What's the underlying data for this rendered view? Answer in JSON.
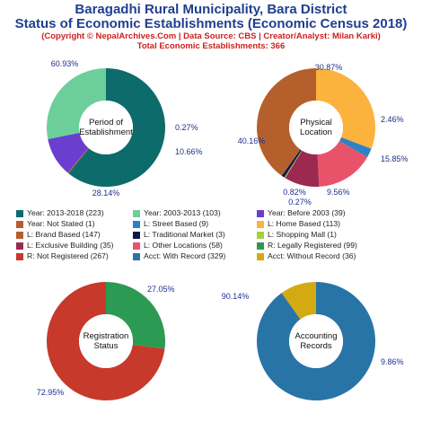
{
  "header": {
    "title": "Baragadhi Rural Municipality, Bara District",
    "subtitle": "Status of Economic Establishments (Economic Census 2018)",
    "copyright": "(Copyright © NepalArchives.Com | Data Source: CBS | Creator/Analyst: Milan Karki)",
    "total": "Total Economic Establishments: 366"
  },
  "chart_data": [
    {
      "type": "pie",
      "center_label": [
        "Period of",
        "Establishment"
      ],
      "slices": [
        {
          "name": "Year: 2013-2018",
          "value": 223,
          "percent_label": "60.93%",
          "color": "#0e6b6b"
        },
        {
          "name": "Year: Not Stated",
          "value": 1,
          "percent_label": "0.27%",
          "color": "#b5602c"
        },
        {
          "name": "Year: Before 2003",
          "value": 39,
          "percent_label": "10.66%",
          "color": "#6a3fd0"
        },
        {
          "name": "Year: 2003-2013",
          "value": 103,
          "percent_label": "28.14%",
          "color": "#6ccf9b"
        }
      ]
    },
    {
      "type": "pie",
      "center_label": [
        "Physical",
        "Location"
      ],
      "slices": [
        {
          "name": "L: Home Based",
          "value": 113,
          "percent_label": "30.87%",
          "color": "#fbb33d"
        },
        {
          "name": "L: Street Based",
          "value": 9,
          "percent_label": "2.46%",
          "color": "#2b83c6"
        },
        {
          "name": "L: Other Locations",
          "value": 58,
          "percent_label": "15.85%",
          "color": "#e8536a"
        },
        {
          "name": "L: Exclusive Building",
          "value": 35,
          "percent_label": "9.56%",
          "color": "#9c2a50"
        },
        {
          "name": "L: Shopping Mall",
          "value": 1,
          "percent_label": "0.27%",
          "color": "#a8cf3a"
        },
        {
          "name": "L: Traditional Market",
          "value": 3,
          "percent_label": "0.82%",
          "color": "#101850"
        },
        {
          "name": "L: Brand Based",
          "value": 147,
          "percent_label": "40.16%",
          "color": "#b5602c"
        }
      ]
    },
    {
      "type": "pie",
      "center_label": [
        "Registration",
        "Status"
      ],
      "slices": [
        {
          "name": "R: Legally Registered",
          "value": 99,
          "percent_label": "27.05%",
          "color": "#2b9a52"
        },
        {
          "name": "R: Not Registered",
          "value": 267,
          "percent_label": "72.95%",
          "color": "#c7392b"
        }
      ]
    },
    {
      "type": "pie",
      "center_label": [
        "Accounting",
        "Records"
      ],
      "slices": [
        {
          "name": "Acct: With Record",
          "value": 329,
          "percent_label": "90.14%",
          "color": "#2874a6"
        },
        {
          "name": "Acct: Without Record",
          "value": 36,
          "percent_label": "9.86%",
          "color": "#d4aa12"
        }
      ]
    }
  ],
  "legend": [
    {
      "label": "Year: 2013-2018 (223)",
      "color": "#0e6b6b"
    },
    {
      "label": "Year: 2003-2013 (103)",
      "color": "#6ccf9b"
    },
    {
      "label": "Year: Before 2003 (39)",
      "color": "#6a3fd0"
    },
    {
      "label": "Year: Not Stated (1)",
      "color": "#b5602c"
    },
    {
      "label": "L: Street Based (9)",
      "color": "#2b83c6"
    },
    {
      "label": "L: Home Based (113)",
      "color": "#fbb33d"
    },
    {
      "label": "L: Brand Based (147)",
      "color": "#b5602c"
    },
    {
      "label": "L: Traditional Market (3)",
      "color": "#101850"
    },
    {
      "label": "L: Shopping Mall (1)",
      "color": "#a8cf3a"
    },
    {
      "label": "L: Exclusive Building (35)",
      "color": "#9c2a50"
    },
    {
      "label": "L: Other Locations (58)",
      "color": "#e8536a"
    },
    {
      "label": "R: Legally Registered (99)",
      "color": "#2b9a52"
    },
    {
      "label": "R: Not Registered (267)",
      "color": "#c7392b"
    },
    {
      "label": "Acct: With Record (329)",
      "color": "#2874a6"
    },
    {
      "label": "Acct: Without Record (36)",
      "color": "#d4aa12"
    }
  ]
}
